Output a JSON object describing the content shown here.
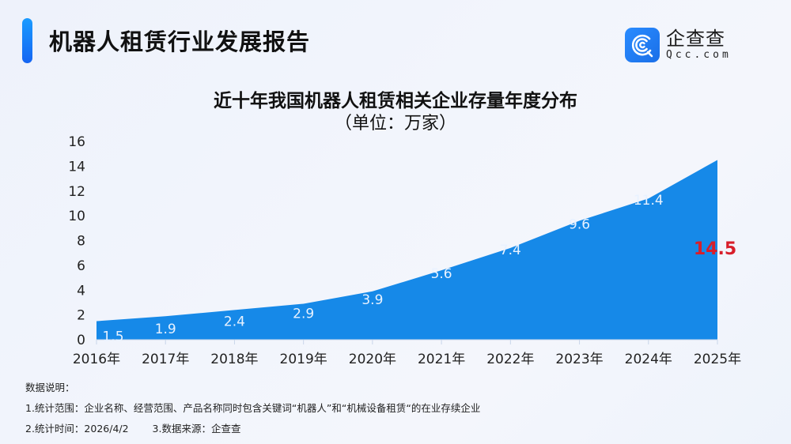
{
  "header": {
    "report_title": "机器人租赁行业发展报告",
    "logo": {
      "icon": "qcc-logo-icon",
      "name_cn": "企查查",
      "name_en": "Qcc.com"
    }
  },
  "chart_title": "近十年我国机器人租赁相关企业存量年度分布",
  "chart_subtitle": "（单位：万家）",
  "chart_data": {
    "type": "area",
    "title": "近十年我国机器人租赁相关企业存量年度分布",
    "subtitle": "（单位：万家）",
    "categories": [
      "2016年",
      "2017年",
      "2018年",
      "2019年",
      "2020年",
      "2021年",
      "2022年",
      "2023年",
      "2024年",
      "2025年"
    ],
    "values": [
      1.5,
      1.9,
      2.4,
      2.9,
      3.9,
      5.6,
      7.4,
      9.6,
      11.4,
      14.5
    ],
    "value_labels": [
      "1.5",
      "1.9",
      "2.4",
      "2.9",
      "3.9",
      "5.6",
      "7.4",
      "9.6",
      "11.4",
      "14.5"
    ],
    "highlight_index": 9,
    "xlabel": "",
    "ylabel": "",
    "ylim": [
      0,
      16
    ],
    "y_ticks": [
      "0",
      "2",
      "4",
      "6",
      "8",
      "10",
      "12",
      "14",
      "16"
    ],
    "grid": false,
    "legend": "none",
    "colors": {
      "area": "#1689e8",
      "highlight_label": "#d81e2a",
      "value_label": "#e8f2ff"
    }
  },
  "notes": {
    "heading": "数据说明：",
    "line1": "1.统计范围：企业名称、经营范围、产品名称同时包含关键词“机器人”和“机械设备租赁“的在业存续企业",
    "line2_time": "2.统计时间：2026/4/2",
    "line2_source": "3.数据来源：企查查"
  }
}
